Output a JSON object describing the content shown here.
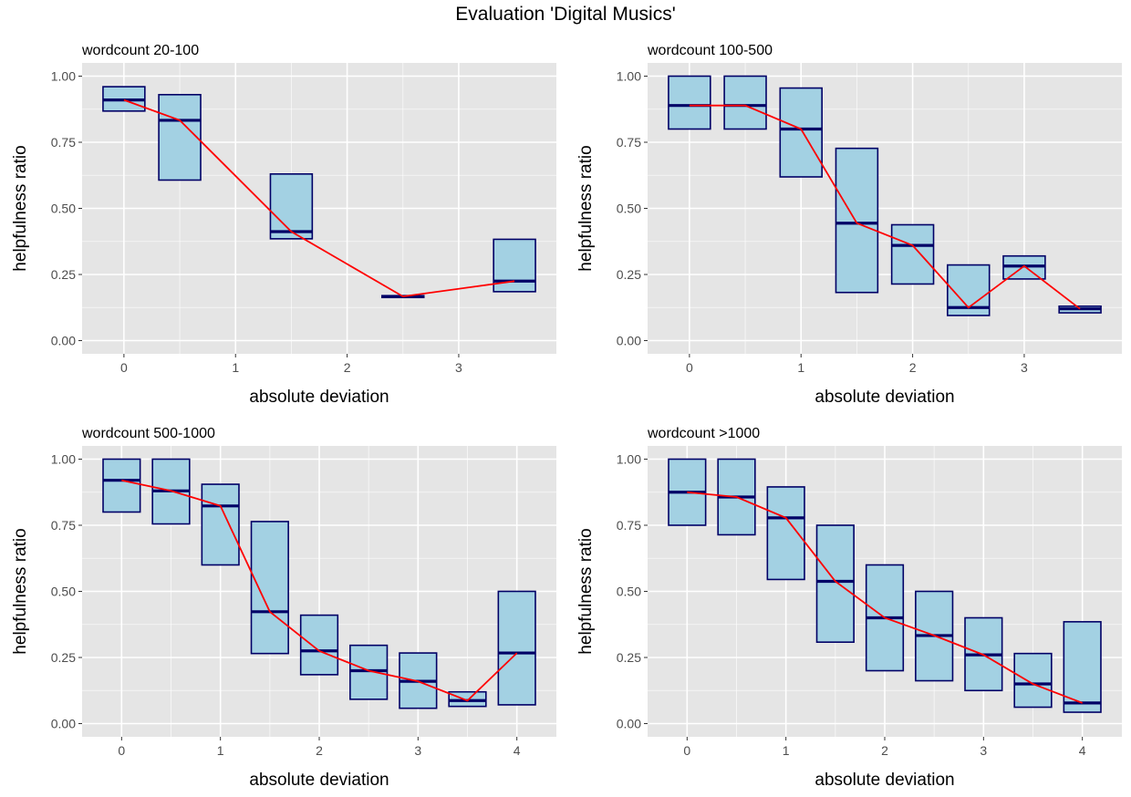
{
  "figure": {
    "title": "Evaluation 'Digital Musics'",
    "colors": {
      "panel_background": "#e5e5e5",
      "grid": "#ffffff",
      "box_fill": "#a3d1e3",
      "box_stroke": "#000066",
      "median": "#000066",
      "line": "#ff0000",
      "tick_text": "#4d4d4d"
    }
  },
  "chart_data": [
    {
      "type": "boxplot",
      "title": "wordcount 20-100",
      "xlabel": "absolute deviation",
      "ylabel": "helpfulness ratio",
      "xlim": [
        -0.375,
        3.875
      ],
      "ylim": [
        -0.05,
        1.05
      ],
      "xticks": [
        0,
        1,
        2,
        3
      ],
      "yticks": [
        0,
        0.25,
        0.5,
        0.75,
        1
      ],
      "ytick_labels": [
        "0.00",
        "0.25",
        "0.50",
        "0.75",
        "1.00"
      ],
      "box_width": 0.375,
      "grid": true,
      "boxes": [
        {
          "x": 0,
          "q1": 0.868,
          "median": 0.91,
          "q3": 0.96
        },
        {
          "x": 0.5,
          "q1": 0.607,
          "median": 0.833,
          "q3": 0.93
        },
        {
          "x": 1.5,
          "q1": 0.385,
          "median": 0.412,
          "q3": 0.63
        },
        {
          "x": 2.5,
          "q1": 0.163,
          "median": 0.167,
          "q3": 0.17
        },
        {
          "x": 3.5,
          "q1": 0.185,
          "median": 0.225,
          "q3": 0.383
        }
      ],
      "line": {
        "x": [
          0,
          0.5,
          1.5,
          2.5,
          3.5
        ],
        "y": [
          0.91,
          0.833,
          0.412,
          0.167,
          0.225
        ]
      }
    },
    {
      "type": "boxplot",
      "title": "wordcount 100-500",
      "xlabel": "absolute deviation",
      "ylabel": "helpfulness ratio",
      "xlim": [
        -0.375,
        3.875
      ],
      "ylim": [
        -0.05,
        1.05
      ],
      "xticks": [
        0,
        1,
        2,
        3
      ],
      "yticks": [
        0,
        0.25,
        0.5,
        0.75,
        1
      ],
      "ytick_labels": [
        "0.00",
        "0.25",
        "0.50",
        "0.75",
        "1.00"
      ],
      "box_width": 0.375,
      "grid": true,
      "boxes": [
        {
          "x": 0,
          "q1": 0.8,
          "median": 0.889,
          "q3": 1.0
        },
        {
          "x": 0.5,
          "q1": 0.8,
          "median": 0.889,
          "q3": 1.0
        },
        {
          "x": 1,
          "q1": 0.619,
          "median": 0.8,
          "q3": 0.955
        },
        {
          "x": 1.5,
          "q1": 0.182,
          "median": 0.444,
          "q3": 0.727
        },
        {
          "x": 2,
          "q1": 0.214,
          "median": 0.36,
          "q3": 0.438
        },
        {
          "x": 2.5,
          "q1": 0.095,
          "median": 0.125,
          "q3": 0.286
        },
        {
          "x": 3,
          "q1": 0.233,
          "median": 0.282,
          "q3": 0.32
        },
        {
          "x": 3.5,
          "q1": 0.105,
          "median": 0.12,
          "q3": 0.13
        }
      ],
      "line": {
        "x": [
          0,
          0.5,
          1,
          1.5,
          2,
          2.5,
          3,
          3.5
        ],
        "y": [
          0.889,
          0.889,
          0.8,
          0.444,
          0.36,
          0.125,
          0.282,
          0.12
        ]
      }
    },
    {
      "type": "boxplot",
      "title": "wordcount 500-1000",
      "xlabel": "absolute deviation",
      "ylabel": "helpfulness ratio",
      "xlim": [
        -0.4,
        4.4
      ],
      "ylim": [
        -0.05,
        1.05
      ],
      "xticks": [
        0,
        1,
        2,
        3,
        4
      ],
      "yticks": [
        0,
        0.25,
        0.5,
        0.75,
        1
      ],
      "ytick_labels": [
        "0.00",
        "0.25",
        "0.50",
        "0.75",
        "1.00"
      ],
      "box_width": 0.375,
      "grid": true,
      "boxes": [
        {
          "x": 0,
          "q1": 0.8,
          "median": 0.92,
          "q3": 1.0
        },
        {
          "x": 0.5,
          "q1": 0.755,
          "median": 0.88,
          "q3": 1.0
        },
        {
          "x": 1,
          "q1": 0.6,
          "median": 0.823,
          "q3": 0.905
        },
        {
          "x": 1.5,
          "q1": 0.265,
          "median": 0.423,
          "q3": 0.764
        },
        {
          "x": 2,
          "q1": 0.185,
          "median": 0.275,
          "q3": 0.41
        },
        {
          "x": 2.5,
          "q1": 0.092,
          "median": 0.2,
          "q3": 0.296
        },
        {
          "x": 3,
          "q1": 0.058,
          "median": 0.16,
          "q3": 0.267
        },
        {
          "x": 3.5,
          "q1": 0.065,
          "median": 0.087,
          "q3": 0.12
        },
        {
          "x": 4,
          "q1": 0.071,
          "median": 0.267,
          "q3": 0.5
        }
      ],
      "line": {
        "x": [
          0,
          0.5,
          1,
          1.5,
          2,
          2.5,
          3,
          3.5,
          4
        ],
        "y": [
          0.92,
          0.88,
          0.823,
          0.423,
          0.275,
          0.2,
          0.16,
          0.087,
          0.267
        ]
      }
    },
    {
      "type": "boxplot",
      "title": "wordcount >1000",
      "xlabel": "absolute deviation",
      "ylabel": "helpfulness ratio",
      "xlim": [
        -0.4,
        4.4
      ],
      "ylim": [
        -0.05,
        1.05
      ],
      "xticks": [
        0,
        1,
        2,
        3,
        4
      ],
      "yticks": [
        0,
        0.25,
        0.5,
        0.75,
        1
      ],
      "ytick_labels": [
        "0.00",
        "0.25",
        "0.50",
        "0.75",
        "1.00"
      ],
      "box_width": 0.375,
      "grid": true,
      "boxes": [
        {
          "x": 0,
          "q1": 0.75,
          "median": 0.875,
          "q3": 1.0
        },
        {
          "x": 0.5,
          "q1": 0.714,
          "median": 0.857,
          "q3": 1.0
        },
        {
          "x": 1,
          "q1": 0.545,
          "median": 0.778,
          "q3": 0.895
        },
        {
          "x": 1.5,
          "q1": 0.308,
          "median": 0.538,
          "q3": 0.75
        },
        {
          "x": 2,
          "q1": 0.2,
          "median": 0.4,
          "q3": 0.6
        },
        {
          "x": 2.5,
          "q1": 0.162,
          "median": 0.333,
          "q3": 0.5
        },
        {
          "x": 3,
          "q1": 0.125,
          "median": 0.26,
          "q3": 0.4
        },
        {
          "x": 3.5,
          "q1": 0.062,
          "median": 0.15,
          "q3": 0.265
        },
        {
          "x": 4,
          "q1": 0.043,
          "median": 0.078,
          "q3": 0.385
        }
      ],
      "line": {
        "x": [
          0,
          0.5,
          1,
          1.5,
          2,
          2.5,
          3,
          3.5,
          4
        ],
        "y": [
          0.875,
          0.857,
          0.778,
          0.538,
          0.4,
          0.333,
          0.26,
          0.15,
          0.078
        ]
      }
    }
  ]
}
